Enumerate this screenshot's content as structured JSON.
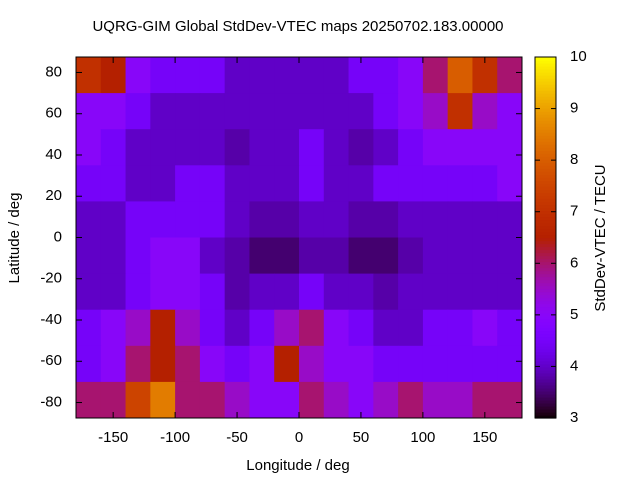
{
  "chart_data": {
    "type": "heatmap",
    "title": "UQRG-GIM Global StdDev-VTEC maps 20250702.183.00000",
    "x_label": "Longitude / deg",
    "y_label": "Latitude / deg",
    "colorbar_label": "StdDev-VTEC / TECU",
    "x": [
      -170,
      -150,
      -130,
      -110,
      -90,
      -70,
      -50,
      -30,
      -10,
      10,
      30,
      50,
      70,
      90,
      110,
      130,
      150,
      170
    ],
    "y": [
      78.75,
      61.25,
      43.75,
      26.25,
      8.75,
      -8.75,
      -26.25,
      -43.75,
      -61.25,
      -78.75
    ],
    "values": [
      [
        7,
        6.5,
        5,
        4.5,
        4.5,
        4.5,
        4,
        4,
        4,
        4,
        4,
        4.5,
        4.5,
        5,
        6,
        8,
        7,
        6
      ],
      [
        5,
        5,
        4.5,
        4,
        4,
        4,
        4,
        4,
        4,
        4,
        4,
        4,
        4.5,
        5,
        5.5,
        7,
        5.5,
        5
      ],
      [
        5,
        4.5,
        4,
        4,
        4,
        4,
        3.8,
        4,
        4,
        4.5,
        4,
        3.8,
        4,
        4.5,
        5,
        5,
        5,
        5
      ],
      [
        4.5,
        4.5,
        4,
        4,
        4.5,
        4.5,
        4,
        4,
        4,
        4.5,
        4,
        4,
        4.5,
        4.5,
        4.5,
        4.5,
        4.5,
        5
      ],
      [
        4,
        4,
        4.5,
        4.5,
        4.5,
        4.5,
        4,
        3.8,
        3.8,
        4,
        4,
        3.8,
        3.8,
        4,
        4,
        4,
        4,
        4
      ],
      [
        4,
        4,
        4.5,
        5,
        5,
        4,
        3.8,
        3.5,
        3.5,
        3.8,
        3.8,
        3.5,
        3.5,
        3.8,
        4,
        4,
        4,
        4
      ],
      [
        4,
        4,
        4.5,
        5,
        5,
        4.5,
        3.8,
        4,
        4,
        4.5,
        4,
        4,
        3.8,
        4,
        4,
        4,
        4,
        4
      ],
      [
        4.5,
        5,
        5.5,
        6.5,
        5.5,
        4.5,
        4,
        4.5,
        5.5,
        6,
        5,
        4.5,
        4,
        4,
        4.5,
        4.5,
        5,
        4.5
      ],
      [
        4.5,
        5,
        6,
        6.5,
        6,
        5,
        4.5,
        5,
        6.5,
        5.5,
        5,
        5,
        4.5,
        4.5,
        4.5,
        4.5,
        4.5,
        4.5
      ],
      [
        6,
        6,
        7.5,
        8.5,
        6,
        6,
        5.5,
        5,
        5,
        6,
        5.5,
        5,
        5.5,
        6,
        5.5,
        5.5,
        6,
        6
      ]
    ],
    "xlim": [
      -180,
      180
    ],
    "ylim": [
      -87.5,
      87.5
    ],
    "zlim": [
      3,
      10
    ],
    "xticks": [
      -150,
      -100,
      -50,
      0,
      50,
      100,
      150
    ],
    "yticks": [
      -80,
      -60,
      -40,
      -20,
      0,
      20,
      40,
      60,
      80
    ],
    "zticks": [
      3,
      4,
      5,
      6,
      7,
      8,
      9,
      10
    ]
  }
}
